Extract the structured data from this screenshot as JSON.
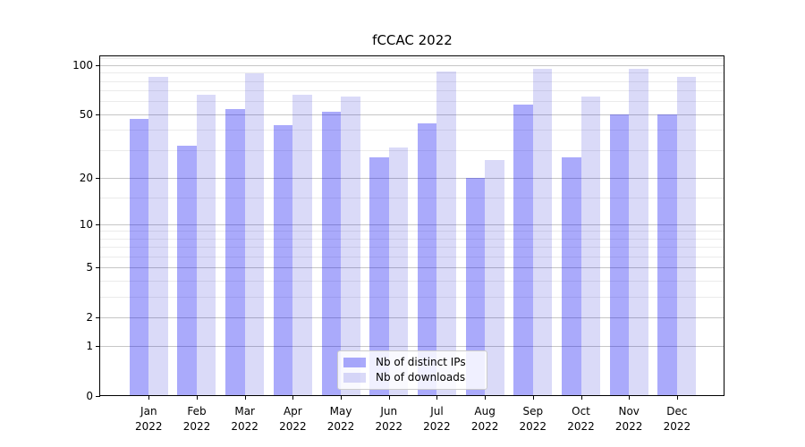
{
  "title": "fCCAC 2022",
  "chart_data": {
    "type": "bar",
    "title": "fCCAC 2022",
    "categories": [
      "Jan",
      "Feb",
      "Mar",
      "Apr",
      "May",
      "Jun",
      "Jul",
      "Aug",
      "Sep",
      "Oct",
      "Nov",
      "Dec"
    ],
    "x_year_label": "2022",
    "series": [
      {
        "name": "Nb of distinct IPs",
        "color": "#aaaafb",
        "color_rgba": "rgba(5,5,243,0.34)",
        "values": [
          47,
          32,
          54,
          43,
          52,
          27,
          44,
          20,
          57,
          27,
          50,
          50
        ]
      },
      {
        "name": "Nb of downloads",
        "color": "#dadaf8",
        "color_rgba": "rgba(8,8,210,0.15)",
        "values": [
          85,
          66,
          89,
          66,
          64,
          31,
          92,
          26,
          95,
          64,
          95,
          85
        ]
      }
    ],
    "yscale": "log(1+y)",
    "ylim": [
      0,
      114
    ],
    "y_major_ticks": [
      0,
      1,
      2,
      5,
      10,
      20,
      50,
      100
    ],
    "y_minor_gridlines": [
      3,
      4,
      6,
      7,
      8,
      9,
      15,
      30,
      40,
      60,
      70,
      80,
      90,
      110
    ],
    "grid": true,
    "legend_position": "lower center",
    "axis_color": "#000000",
    "major_grid_color": "#c6c6c6",
    "minor_grid_color": "#ebebeb"
  }
}
